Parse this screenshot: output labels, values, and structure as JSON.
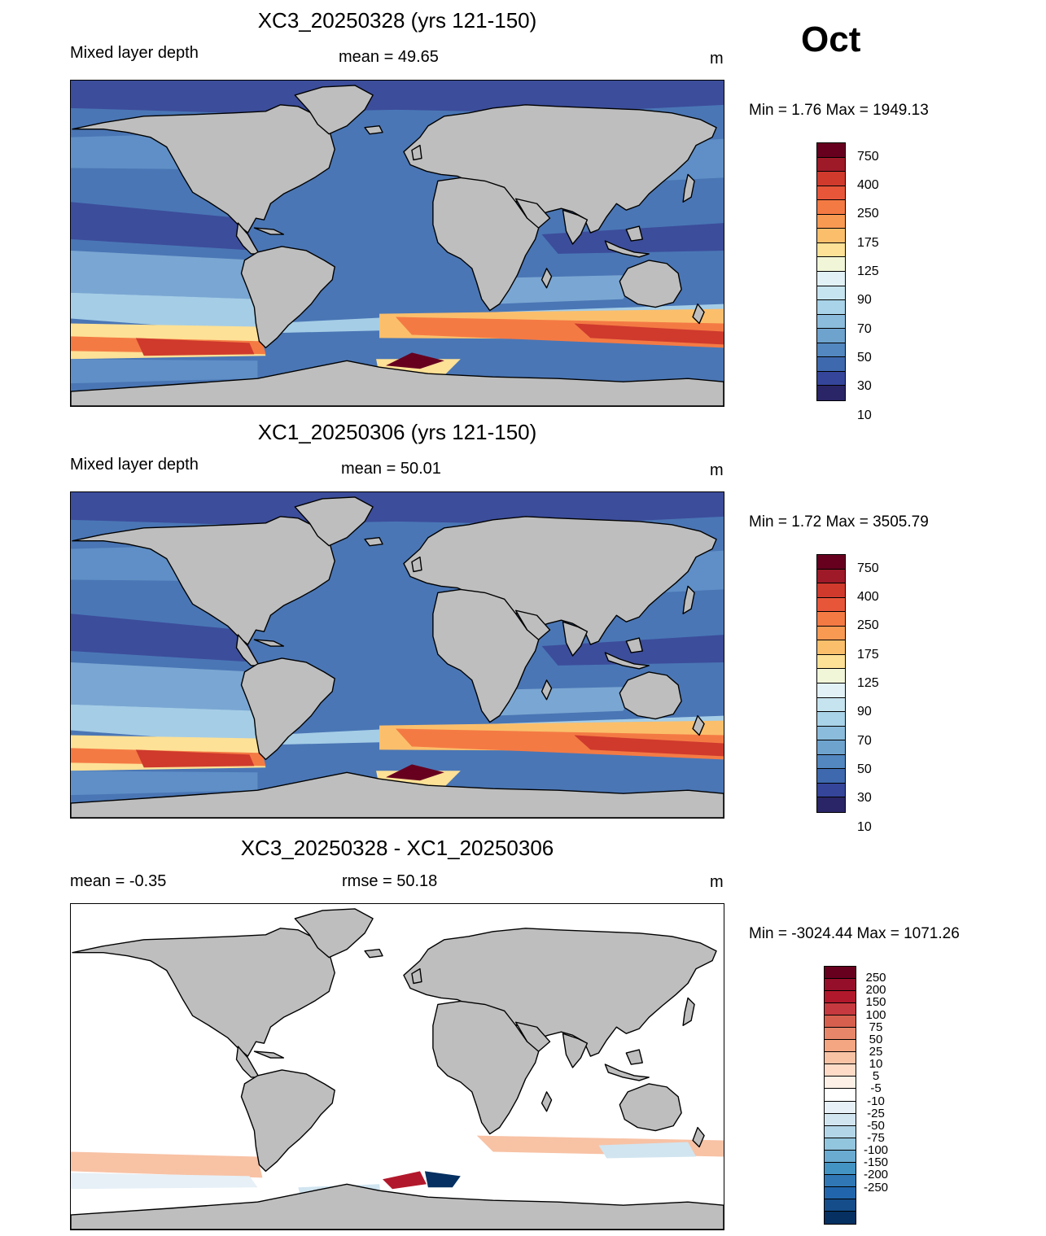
{
  "month": "Oct",
  "panels": [
    {
      "title": "XC3_20250328 (yrs 121-150)",
      "left_label": "Mixed layer depth",
      "center_label": "mean =  49.65",
      "unit": "m",
      "minmax": "Min =   1.76 Max = 1949.13",
      "palette": "sequential",
      "colorbar": {
        "colors": [
          "#67001f",
          "#9e1a28",
          "#cf3a2d",
          "#e8563a",
          "#f47a44",
          "#f99a53",
          "#fbbf6b",
          "#fde196",
          "#f1f6d8",
          "#e1f1f5",
          "#c6e4ef",
          "#a8d3e8",
          "#8bbcdc",
          "#6ea3ce",
          "#5287bf",
          "#3e69ae",
          "#35459a",
          "#2a2566"
        ],
        "labels": [
          "750",
          "400",
          "250",
          "175",
          "125",
          "90",
          "70",
          "50",
          "30",
          "10"
        ]
      }
    },
    {
      "title": "XC1_20250306 (yrs 121-150)",
      "left_label": "Mixed layer depth",
      "center_label": "mean =  50.01",
      "unit": "m",
      "minmax": "Min =   1.72 Max = 3505.79",
      "palette": "sequential",
      "colorbar": {
        "colors": [
          "#67001f",
          "#9e1a28",
          "#cf3a2d",
          "#e8563a",
          "#f47a44",
          "#f99a53",
          "#fbbf6b",
          "#fde196",
          "#f1f6d8",
          "#e1f1f5",
          "#c6e4ef",
          "#a8d3e8",
          "#8bbcdc",
          "#6ea3ce",
          "#5287bf",
          "#3e69ae",
          "#35459a",
          "#2a2566"
        ],
        "labels": [
          "750",
          "400",
          "250",
          "175",
          "125",
          "90",
          "70",
          "50",
          "30",
          "10"
        ]
      }
    },
    {
      "title": "XC3_20250328 - XC1_20250306",
      "left_label": "mean =  -0.35",
      "center_label": "rmse =  50.18",
      "unit": "m",
      "minmax": "Min = -3024.44 Max = 1071.26",
      "palette": "diverging",
      "colorbar": {
        "colors": [
          "#67001f",
          "#960f2a",
          "#b2182b",
          "#c63a3f",
          "#d6604d",
          "#e8866a",
          "#f4a582",
          "#f8c2a5",
          "#fddbc7",
          "#fdf0e6",
          "#ffffff",
          "#e6f0f6",
          "#d1e5f0",
          "#b3d5e8",
          "#92c5de",
          "#6aabd1",
          "#4393c3",
          "#2f78b5",
          "#2166ac",
          "#144d8a",
          "#053061"
        ],
        "labels": [
          "250",
          "200",
          "150",
          "100",
          "75",
          "50",
          "25",
          "10",
          "5",
          "-5",
          "-10",
          "-25",
          "-50",
          "-75",
          "-100",
          "-150",
          "-200",
          "-250"
        ]
      }
    }
  ]
}
